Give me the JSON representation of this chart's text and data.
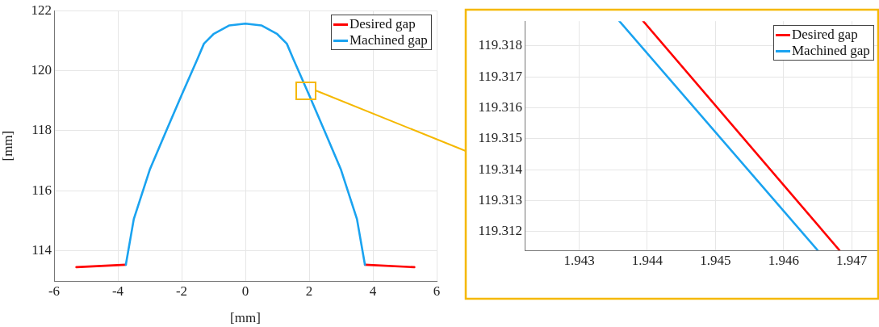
{
  "chart_data": [
    {
      "type": "line",
      "xlabel": "[mm]",
      "ylabel": "[mm]",
      "xlim": [
        -6,
        6
      ],
      "xticks": [
        -6,
        -4,
        -2,
        0,
        2,
        4,
        6
      ],
      "ylim": [
        113,
        122
      ],
      "yticks": [
        114,
        116,
        118,
        120,
        122
      ],
      "grid": true,
      "legend": "top right",
      "series": [
        {
          "name": "Desired gap",
          "color": "#ff0000",
          "x": [
            -5.3,
            -3.75,
            -3.5,
            -3,
            -2.5,
            -2,
            -1.5,
            -1.3,
            -1,
            -0.5,
            0,
            0.5,
            1,
            1.3,
            1.5,
            2,
            2.5,
            3,
            3.5,
            3.75,
            5.3
          ],
          "values": [
            113.46,
            113.54,
            null,
            null,
            null,
            null,
            null,
            null,
            null,
            null,
            null,
            null,
            null,
            null,
            null,
            null,
            null,
            null,
            null,
            113.54,
            113.46
          ]
        },
        {
          "name": "Machined gap",
          "color": "#1aa3f0",
          "x": [
            -3.75,
            -3.5,
            -3,
            -2.5,
            -2,
            -1.5,
            -1.3,
            -1,
            -0.5,
            0,
            0.5,
            1,
            1.3,
            1.5,
            2,
            2.5,
            3,
            3.5,
            3.75
          ],
          "values": [
            113.54,
            115.06,
            116.7,
            117.95,
            119.19,
            120.4,
            120.9,
            121.22,
            121.51,
            121.57,
            121.51,
            121.22,
            120.9,
            120.4,
            119.19,
            117.95,
            116.7,
            115.06,
            113.54
          ]
        }
      ]
    },
    {
      "type": "line",
      "xlim": [
        1.9422,
        1.9474
      ],
      "xticks": [
        1.943,
        1.944,
        1.945,
        1.946,
        1.947
      ],
      "ylim": [
        119.3114,
        119.3188
      ],
      "yticks": [
        119.312,
        119.313,
        119.314,
        119.315,
        119.316,
        119.317,
        119.318
      ],
      "grid": true,
      "legend": "top right",
      "series": [
        {
          "name": "Desired gap",
          "color": "#ff0000",
          "x": [
            1.94394,
            1.94682
          ],
          "values": [
            119.3188,
            119.3114
          ]
        },
        {
          "name": "Machined gap",
          "color": "#1aa3f0",
          "x": [
            1.94359,
            1.9465
          ],
          "values": [
            119.3188,
            119.3114
          ]
        }
      ]
    }
  ]
}
